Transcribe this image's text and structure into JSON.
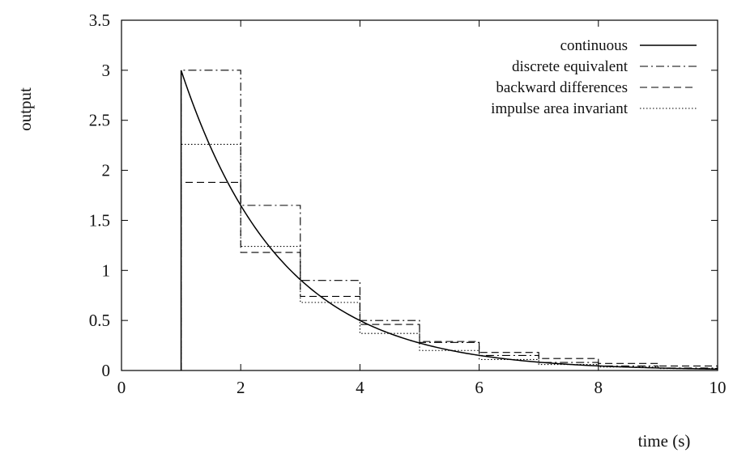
{
  "chart_data": {
    "type": "line",
    "xlabel": "time (s)",
    "ylabel": "output",
    "xlim": [
      0,
      10
    ],
    "ylim": [
      0,
      3.5
    ],
    "xticks": [
      "0",
      "2",
      "4",
      "6",
      "8",
      "10"
    ],
    "yticks": [
      "0",
      "0.5",
      "1",
      "1.5",
      "2",
      "2.5",
      "3",
      "3.5"
    ],
    "legend_position": "top-right",
    "grid": false,
    "series": [
      {
        "name": "continuous",
        "style": "solid",
        "shape": "exponential",
        "x": [
          1,
          2,
          3,
          4,
          5,
          6,
          7,
          8,
          9,
          10
        ],
        "y": [
          3.0,
          1.65,
          0.9,
          0.49,
          0.27,
          0.15,
          0.08,
          0.045,
          0.025,
          0.014
        ]
      },
      {
        "name": "discrete equivalent",
        "style": "dash-dot",
        "shape": "step",
        "x": [
          1,
          2,
          3,
          4,
          5,
          6,
          7,
          8,
          9,
          10
        ],
        "y": [
          3.0,
          1.65,
          0.9,
          0.5,
          0.28,
          0.15,
          0.08,
          0.045,
          0.025,
          0.014
        ]
      },
      {
        "name": "backward differences",
        "style": "dashed",
        "shape": "step",
        "x": [
          1,
          2,
          3,
          4,
          5,
          6,
          7,
          8,
          9,
          10
        ],
        "y": [
          1.88,
          1.18,
          0.74,
          0.46,
          0.29,
          0.18,
          0.12,
          0.07,
          0.045,
          0.03
        ]
      },
      {
        "name": "impulse area invariant",
        "style": "dotted",
        "shape": "step",
        "x": [
          1,
          2,
          3,
          4,
          5,
          6,
          7,
          8,
          9,
          10
        ],
        "y": [
          2.26,
          1.24,
          0.68,
          0.37,
          0.2,
          0.11,
          0.06,
          0.035,
          0.02,
          0.011
        ]
      }
    ]
  }
}
